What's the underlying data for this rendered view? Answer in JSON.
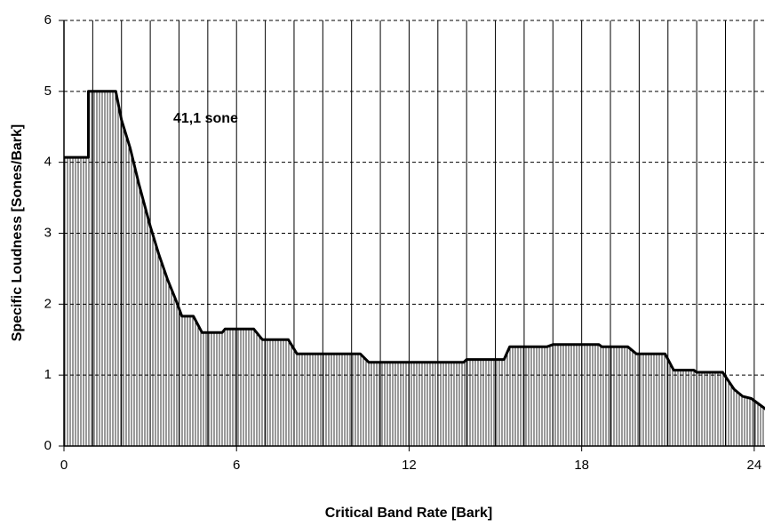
{
  "chart_data": {
    "type": "line",
    "x_label": "Critical Band Rate [Bark]",
    "y_label": "Specific Loudness [Sones/Bark]",
    "annotation": "41,1 sone",
    "x": [
      0,
      0.85,
      0.85,
      1.8,
      2.0,
      2.3,
      2.6,
      3.0,
      3.3,
      3.6,
      3.9,
      4.1,
      4.5,
      4.8,
      5.5,
      5.6,
      6.6,
      6.9,
      7.8,
      8.1,
      10.3,
      10.6,
      13.9,
      14.0,
      15.3,
      15.5,
      16.8,
      17.0,
      18.6,
      18.7,
      19.6,
      19.9,
      20.9,
      21.2,
      21.9,
      22.0,
      22.9,
      23.3,
      23.6,
      23.9,
      24.4
    ],
    "series": [
      {
        "name": "Specific Loudness",
        "color": "#000000",
        "values": [
          4.07,
          4.07,
          5.0,
          5.0,
          4.6,
          4.2,
          3.7,
          3.1,
          2.7,
          2.35,
          2.05,
          1.83,
          1.83,
          1.6,
          1.6,
          1.65,
          1.65,
          1.5,
          1.5,
          1.3,
          1.3,
          1.18,
          1.18,
          1.22,
          1.22,
          1.4,
          1.4,
          1.43,
          1.43,
          1.4,
          1.4,
          1.3,
          1.3,
          1.07,
          1.07,
          1.04,
          1.04,
          0.8,
          0.7,
          0.67,
          0.52
        ]
      }
    ],
    "xlim": [
      0,
      24.4
    ],
    "ylim": [
      0,
      6
    ],
    "xticks": [
      0,
      6,
      12,
      18,
      24
    ],
    "yticks": [
      0,
      1,
      2,
      3,
      4,
      5,
      6
    ],
    "xgrid": [
      1,
      2,
      3,
      4,
      5,
      6,
      7,
      8,
      9,
      10,
      11,
      12,
      13,
      14,
      15,
      16,
      17,
      18,
      19,
      20,
      21,
      22,
      23,
      24
    ],
    "fill": "hatched",
    "grid": true
  }
}
